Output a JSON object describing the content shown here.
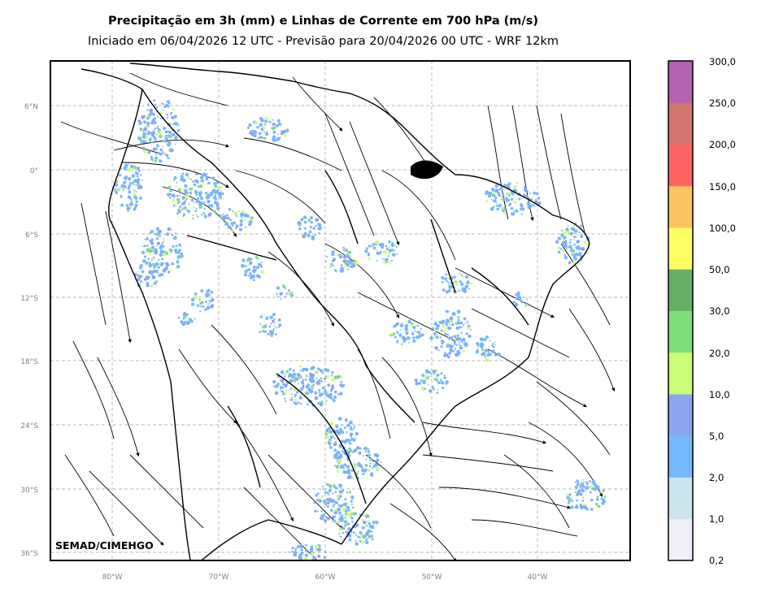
{
  "title": "Precipitação em 3h (mm) e Linhas de Corrente em 700 hPa (m/s)",
  "subtitle": "Iniciado em 06/04/2026 12 UTC - Previsão para 20/04/2026 00 UTC - WRF 12km",
  "credit": "SEMAD/CIMEHGO",
  "lat_labels": [
    "6°N",
    "0°",
    "6°S",
    "12°S",
    "18°S",
    "24°S",
    "30°S",
    "36°S"
  ],
  "lon_labels": [
    "80°W",
    "70°W",
    "60°W",
    "50°W",
    "40°W"
  ],
  "colorbar": {
    "labels": [
      "0,2",
      "1,0",
      "2,0",
      "5,0",
      "10,0",
      "20,0",
      "30,0",
      "50,0",
      "100,0",
      "150,0",
      "200,0",
      "250,0",
      "300,0"
    ],
    "colors": [
      "#efeffa",
      "#cbe5ef",
      "#74b9fb",
      "#8ba6ef",
      "#cbfd77",
      "#7fdf7d",
      "#65b066",
      "#fefe65",
      "#fec461",
      "#fe6464",
      "#d2766f",
      "#b462b3"
    ]
  }
}
